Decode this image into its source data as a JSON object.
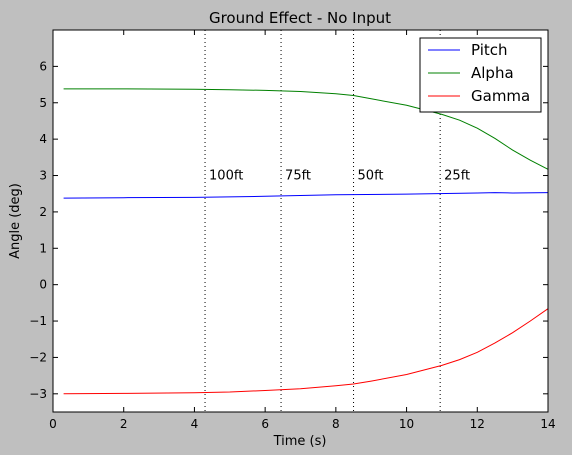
{
  "chart_data": {
    "type": "line",
    "title": "Ground Effect - No Input",
    "xlabel": "Time (s)",
    "ylabel": "Angle (deg)",
    "xlim": [
      0,
      14
    ],
    "ylim": [
      -3.5,
      7
    ],
    "xticks": [
      0,
      2,
      4,
      6,
      8,
      10,
      12,
      14
    ],
    "yticks": [
      -3,
      -2,
      -1,
      0,
      1,
      2,
      3,
      4,
      5,
      6
    ],
    "grid": false,
    "legend_position": "top-right",
    "series": [
      {
        "name": "Pitch",
        "color": "#0000ff",
        "x": [
          0.3,
          2,
          4,
          6,
          8,
          10,
          12,
          12.5,
          13,
          14
        ],
        "y": [
          2.38,
          2.39,
          2.4,
          2.43,
          2.47,
          2.49,
          2.52,
          2.53,
          2.52,
          2.53
        ]
      },
      {
        "name": "Alpha",
        "color": "#008000",
        "x": [
          0.3,
          2,
          4,
          5,
          6,
          7,
          8,
          8.5,
          9,
          10,
          11,
          11.5,
          12,
          12.5,
          13,
          13.5,
          14
        ],
        "y": [
          5.38,
          5.38,
          5.37,
          5.36,
          5.34,
          5.31,
          5.25,
          5.2,
          5.11,
          4.93,
          4.68,
          4.52,
          4.3,
          4.02,
          3.7,
          3.42,
          3.17
        ]
      },
      {
        "name": "Gamma",
        "color": "#ff0000",
        "x": [
          0.3,
          2,
          4,
          5,
          6,
          7,
          8,
          8.5,
          9,
          10,
          11,
          11.5,
          12,
          12.5,
          13,
          13.5,
          14
        ],
        "y": [
          -3.0,
          -2.99,
          -2.97,
          -2.95,
          -2.91,
          -2.86,
          -2.78,
          -2.73,
          -2.65,
          -2.47,
          -2.22,
          -2.06,
          -1.86,
          -1.6,
          -1.32,
          -1.0,
          -0.66
        ]
      }
    ],
    "markers": [
      {
        "x": 4.3,
        "label": "100ft"
      },
      {
        "x": 6.45,
        "label": "75ft"
      },
      {
        "x": 8.5,
        "label": "50ft"
      },
      {
        "x": 10.95,
        "label": "25ft"
      }
    ],
    "marker_label_y": 3.0
  }
}
